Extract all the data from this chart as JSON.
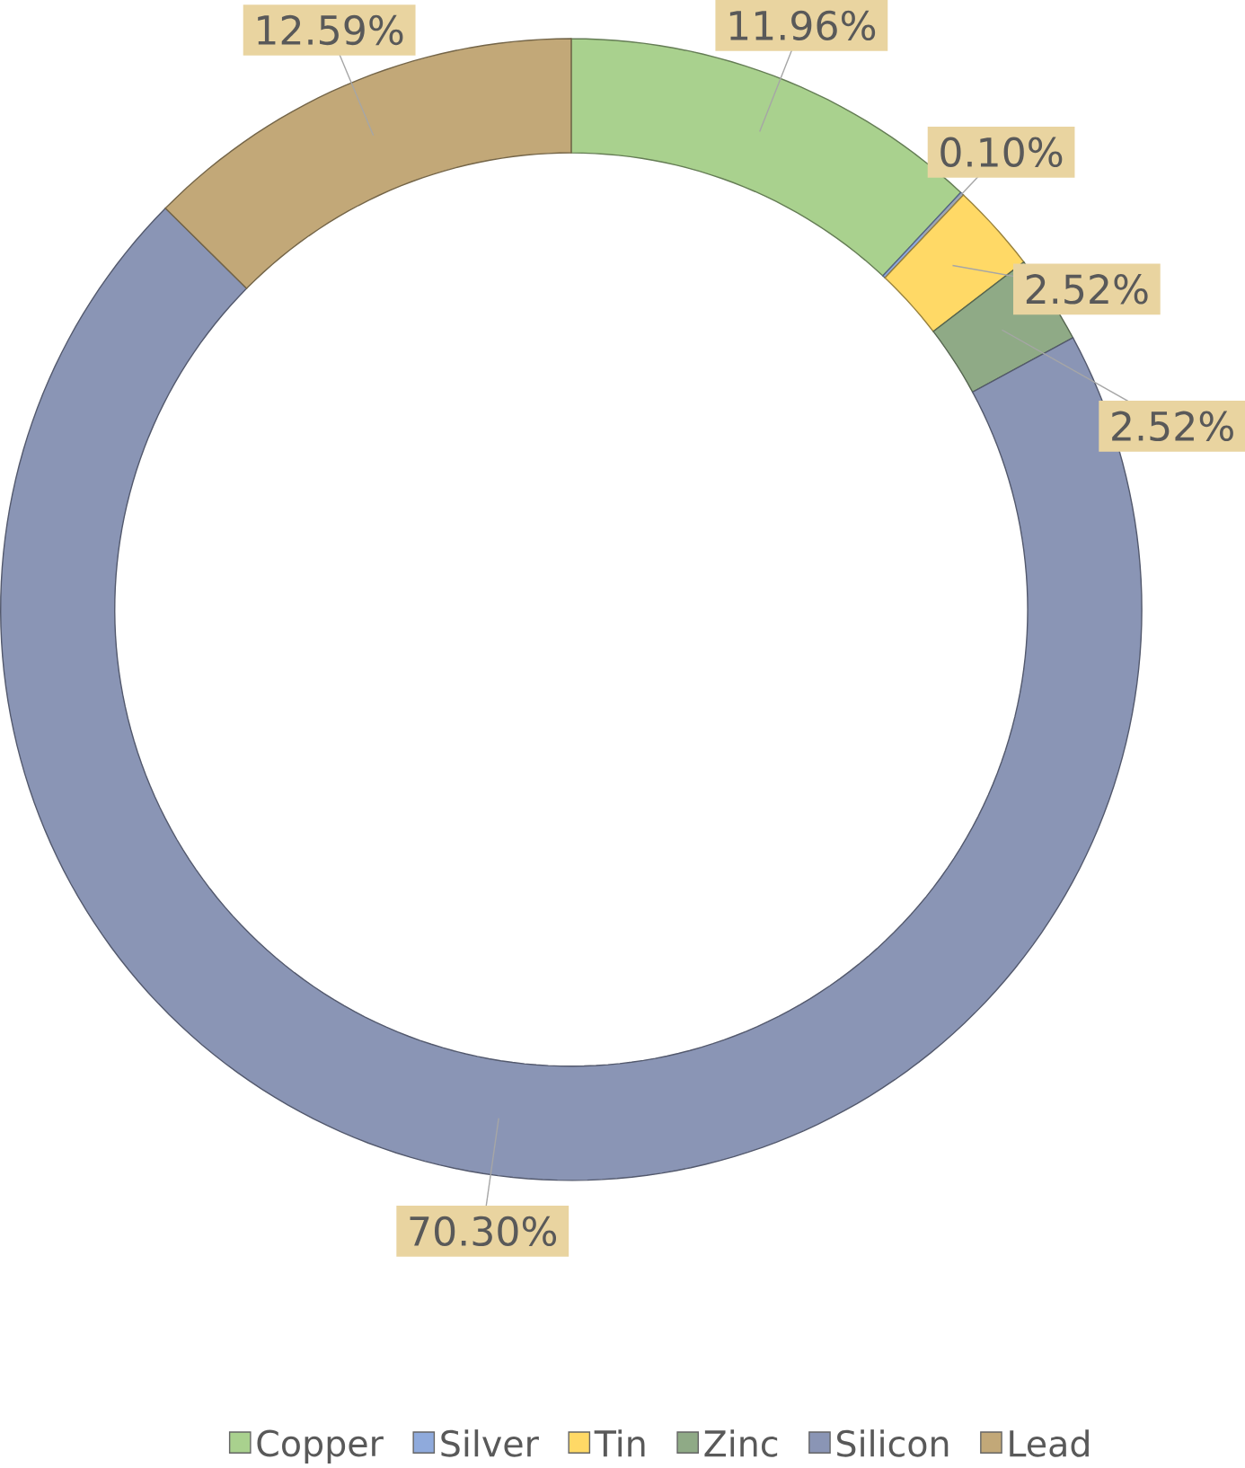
{
  "chart_data": {
    "type": "donut",
    "categories": [
      "Copper",
      "Silver",
      "Tin",
      "Zinc",
      "Silicon",
      "Lead"
    ],
    "values": [
      11.96,
      0.1,
      2.52,
      2.52,
      70.3,
      12.59
    ],
    "value_labels": [
      "11.96%",
      "0.10%",
      "2.52%",
      "2.52%",
      "70.30%",
      "12.59%"
    ],
    "colors": [
      "#a9d18e",
      "#8faadc",
      "#ffd966",
      "#8faa86",
      "#8a95b5",
      "#c2a878"
    ],
    "legend": "bottom"
  }
}
